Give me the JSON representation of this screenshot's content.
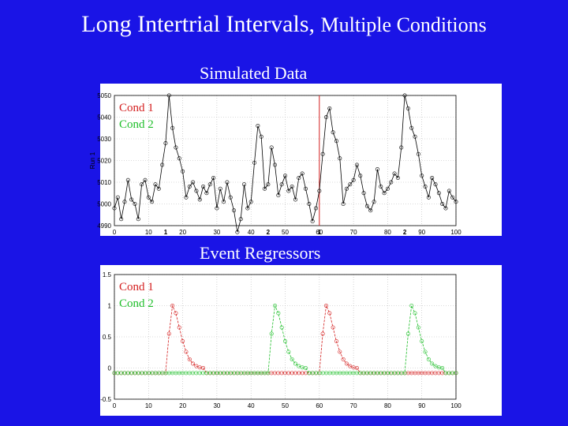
{
  "slide": {
    "title_main": "Long Intertrial Intervals,",
    "title_small": "Multiple Conditions",
    "caption_top": "Simulated Data",
    "caption_bottom": "Event Regressors",
    "colors": {
      "background": "#1a14e6",
      "cond1": "#d42020",
      "cond2": "#1fbf2a",
      "data": "#000000"
    }
  },
  "chart_data": [
    {
      "type": "line",
      "title": "Simulated Data",
      "ylabel": "Run 1",
      "xlim": [
        0,
        100
      ],
      "ylim": [
        4990,
        5050
      ],
      "xticks": [
        0,
        10,
        20,
        30,
        40,
        50,
        60,
        70,
        80,
        90,
        100
      ],
      "yticks": [
        4990,
        5000,
        5010,
        5020,
        5030,
        5040,
        5050
      ],
      "ytick_labels": [
        "4990",
        "5000",
        "5010",
        "5020",
        "5030",
        "5040",
        "5050"
      ],
      "grid": true,
      "legend": {
        "position": "top-left",
        "entries": [
          {
            "label": "Cond 1",
            "color": "#d42020"
          },
          {
            "label": "Cond 2",
            "color": "#1fbf2a"
          }
        ]
      },
      "event_markers": [
        {
          "x": 15,
          "label": "1",
          "color": "#d42020"
        },
        {
          "x": 45,
          "label": "2",
          "color": "#1fbf2a"
        },
        {
          "x": 60,
          "label": "1",
          "color": "#d42020"
        },
        {
          "x": 85,
          "label": "2",
          "color": "#1fbf2a"
        }
      ],
      "vline": {
        "x": 60,
        "color": "#d42020"
      },
      "series": [
        {
          "x": [
            0,
            1,
            2,
            3,
            4,
            5,
            6,
            7,
            8,
            9,
            10,
            11,
            12,
            13,
            14,
            15,
            16,
            17,
            18,
            19,
            20,
            21,
            22,
            23,
            24,
            25,
            26,
            27,
            28,
            29,
            30,
            31,
            32,
            33,
            34,
            35,
            36,
            37,
            38,
            39,
            40,
            41,
            42,
            43,
            44,
            45,
            46,
            47,
            48,
            49,
            50,
            51,
            52,
            53,
            54,
            55,
            56,
            57,
            58,
            59,
            60,
            61,
            62,
            63,
            64,
            65,
            66,
            67,
            68,
            69,
            70,
            71,
            72,
            73,
            74,
            75,
            76,
            77,
            78,
            79,
            80,
            81,
            82,
            83,
            84,
            85,
            86,
            87,
            88,
            89,
            90,
            91,
            92,
            93,
            94,
            95,
            96,
            97,
            98,
            99,
            100
          ],
          "values": [
            4998,
            5003,
            4993,
            5001,
            5011,
            5002,
            5000,
            4993,
            5009,
            5011,
            5003,
            5001,
            5009,
            5007,
            5018,
            5028,
            5050,
            5035,
            5026,
            5021,
            5015,
            5003,
            5008,
            5010,
            5006,
            5002,
            5008,
            5005,
            5009,
            5012,
            4998,
            5007,
            5001,
            5010,
            5003,
            4997,
            4987,
            4993,
            5009,
            4998,
            5001,
            5019,
            5036,
            5031,
            5007,
            5009,
            5026,
            5018,
            5004,
            5009,
            5013,
            5006,
            5008,
            5002,
            5012,
            5014,
            5007,
            5000,
            4992,
            4998,
            5006,
            5023,
            5040,
            5044,
            5033,
            5029,
            5021,
            5000,
            5007,
            5009,
            5011,
            5018,
            5013,
            5005,
            4999,
            4997,
            5001,
            5016,
            5008,
            5005,
            5007,
            5010,
            5014,
            5012,
            5026,
            5050,
            5044,
            5035,
            5031,
            5023,
            5013,
            5008,
            5003,
            5012,
            5009,
            5005,
            5000,
            4998,
            5006,
            5003,
            5001
          ]
        }
      ]
    },
    {
      "type": "line",
      "title": "Event Regressors",
      "xlim": [
        0,
        100
      ],
      "ylim": [
        -0.5,
        1.5
      ],
      "xticks": [
        0,
        10,
        20,
        30,
        40,
        50,
        60,
        70,
        80,
        90,
        100
      ],
      "yticks": [
        -0.5,
        0,
        0.5,
        1,
        1.5
      ],
      "ytick_labels": [
        "-0.5",
        "0",
        "0.5",
        "1",
        "1.5"
      ],
      "grid": true,
      "legend": {
        "position": "top-left",
        "entries": [
          {
            "label": "Cond 1",
            "color": "#d42020"
          },
          {
            "label": "Cond 2",
            "color": "#1fbf2a"
          }
        ]
      },
      "series": [
        {
          "name": "Cond 1",
          "color": "#d42020",
          "onsets": [
            15,
            60
          ],
          "baseline": -0.08,
          "shape": [
            0,
            0.55,
            1.0,
            0.88,
            0.65,
            0.43,
            0.26,
            0.14,
            0.07,
            0.03,
            0.01,
            0
          ]
        },
        {
          "name": "Cond 2",
          "color": "#1fbf2a",
          "onsets": [
            45,
            85
          ],
          "baseline": -0.08,
          "shape": [
            0,
            0.55,
            1.0,
            0.88,
            0.65,
            0.43,
            0.26,
            0.14,
            0.07,
            0.03,
            0.01,
            0
          ]
        }
      ]
    }
  ]
}
